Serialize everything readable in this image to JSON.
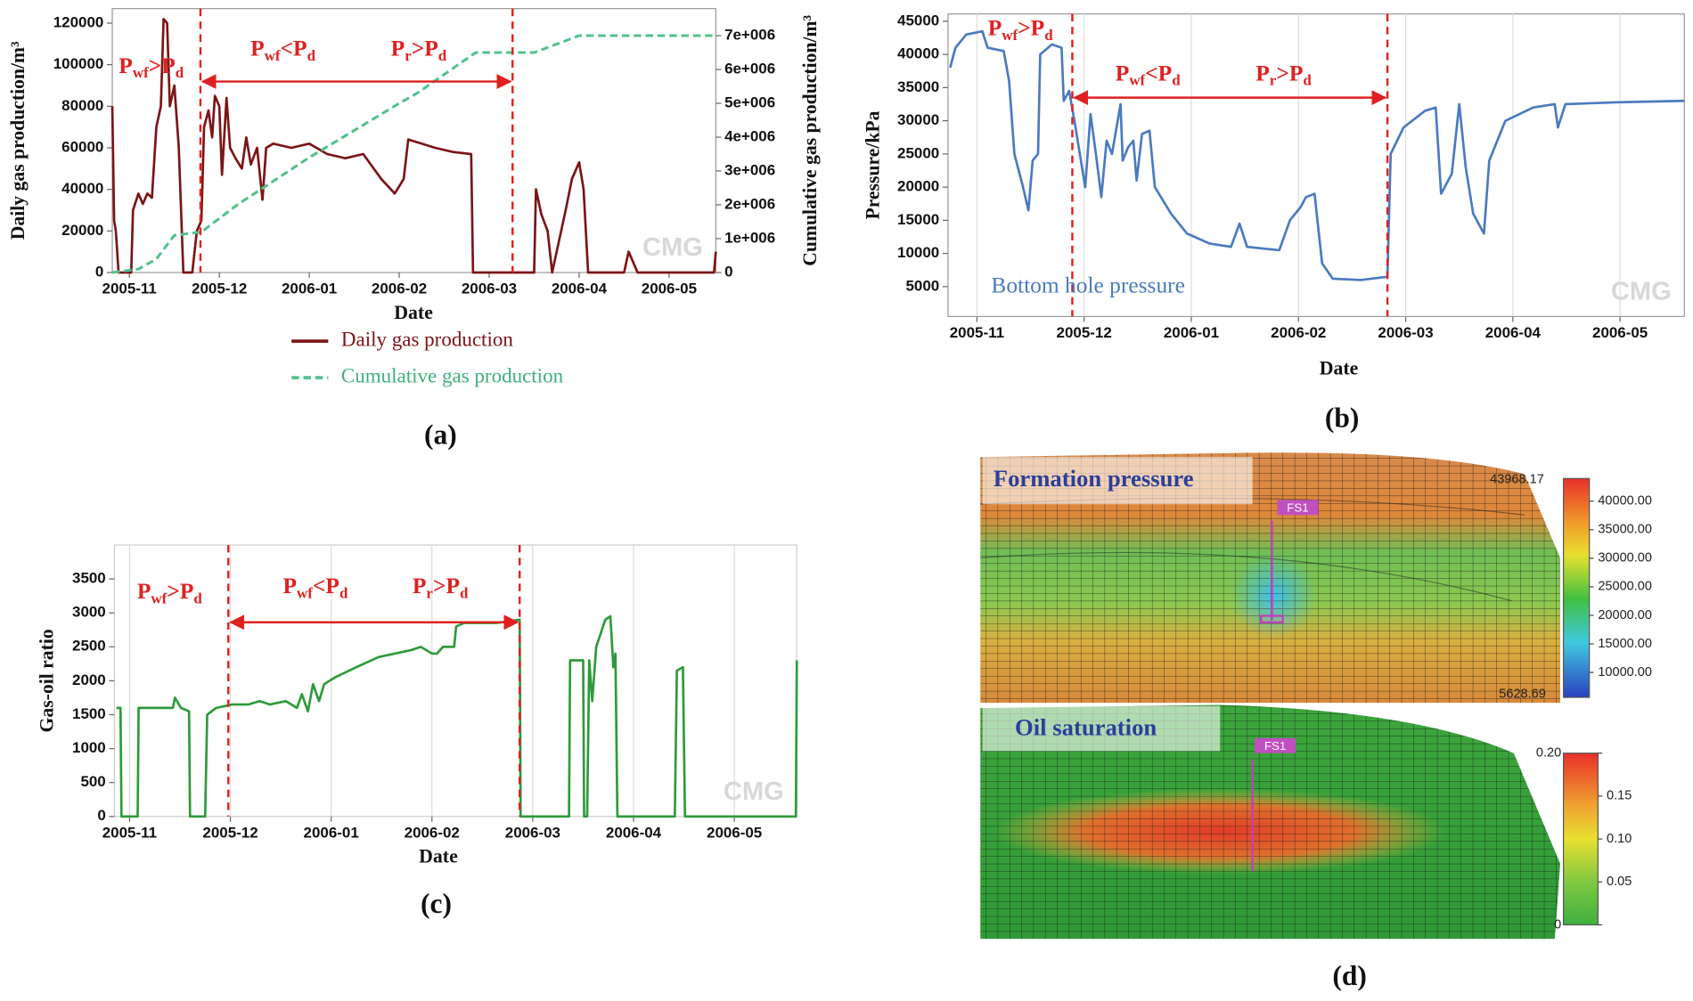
{
  "chart_data": [
    {
      "type": "line",
      "panel_label": "(a)",
      "x_label": "Date",
      "y_label": "Daily gas production/m³",
      "y2_label": "Cumulative gas production/m³",
      "xlim": [
        -0.19,
        6.52
      ],
      "xticks": [
        {
          "value": 0,
          "label": "2005-11"
        },
        {
          "value": 1,
          "label": "2005-12"
        },
        {
          "value": 2,
          "label": "2006-01"
        },
        {
          "value": 3,
          "label": "2006-02"
        },
        {
          "value": 4,
          "label": "2006-03"
        },
        {
          "value": 5,
          "label": "2006-04"
        },
        {
          "value": 6,
          "label": "2006-05"
        }
      ],
      "ylim": [
        0,
        127000
      ],
      "yticks": [
        0,
        20000,
        40000,
        60000,
        80000,
        100000,
        120000
      ],
      "y2lim": [
        0,
        7800000
      ],
      "y2ticks": [
        0,
        {
          "value": 1000000,
          "label": "1e+006"
        },
        {
          "value": 2000000,
          "label": "2e+006"
        },
        {
          "value": 3000000,
          "label": "3e+006"
        },
        {
          "value": 4000000,
          "label": "4e+006"
        },
        {
          "value": 5000000,
          "label": "5e+006"
        },
        {
          "value": 6000000,
          "label": "6e+006"
        },
        {
          "value": 7000000,
          "label": "7e+006"
        }
      ],
      "grid": false,
      "legend": "below",
      "watermark": "CMG",
      "vlines": [
        0.79,
        4.26
      ],
      "annotations": [
        {
          "parts": [
            "P",
            "wf",
            ">P",
            "d"
          ]
        },
        {
          "parts": [
            "P",
            "wf",
            "<P",
            "d"
          ]
        },
        {
          "parts": [
            "P",
            "r",
            ">P",
            "d"
          ]
        }
      ],
      "series": [
        {
          "name": "Daily gas production",
          "color": "#7b1416",
          "dashed": false,
          "x": [
            -0.19,
            -0.17,
            -0.15,
            -0.12,
            0.02,
            0.04,
            0.1,
            0.15,
            0.2,
            0.25,
            0.3,
            0.35,
            0.38,
            0.42,
            0.45,
            0.5,
            0.55,
            0.6,
            0.7,
            0.75,
            0.8,
            0.83,
            0.88,
            0.92,
            0.95,
            1.0,
            1.03,
            1.08,
            1.12,
            1.18,
            1.25,
            1.3,
            1.35,
            1.42,
            1.48,
            1.52,
            1.6,
            1.8,
            2.0,
            2.2,
            2.4,
            2.6,
            2.8,
            2.95,
            3.05,
            3.1,
            3.4,
            3.6,
            3.8,
            3.82,
            4.5,
            4.52,
            4.58,
            4.65,
            4.7,
            4.85,
            4.92,
            5.0,
            5.05,
            5.1,
            5.5,
            5.55,
            5.6,
            5.65,
            6.5,
            6.52
          ],
          "values": [
            80000,
            25000,
            20000,
            0,
            0,
            30000,
            38000,
            33000,
            38000,
            36000,
            70000,
            80000,
            122000,
            120000,
            80000,
            90000,
            60000,
            0,
            0,
            20000,
            25000,
            70000,
            78000,
            65000,
            85000,
            80000,
            47000,
            84000,
            60000,
            55000,
            50000,
            65000,
            52000,
            60000,
            35000,
            60000,
            62000,
            60000,
            62000,
            57000,
            55000,
            57000,
            45000,
            38000,
            45000,
            64000,
            60000,
            58000,
            57000,
            0,
            0,
            40000,
            28000,
            20000,
            0,
            30000,
            45000,
            53000,
            40000,
            0,
            0,
            10000,
            5000,
            0,
            0,
            10000
          ]
        },
        {
          "name": "Cumulative gas production",
          "color": "#4fc28a",
          "dashed": true,
          "axis": "y2",
          "x": [
            -0.19,
            0.1,
            0.3,
            0.5,
            0.8,
            1.2,
            2.0,
            3.0,
            3.2,
            3.85,
            4.5,
            5.0,
            6.52
          ],
          "values": [
            0,
            100000,
            400000,
            1100000,
            1200000,
            2000000,
            3400000,
            5000000,
            5300000,
            6500000,
            6500000,
            7000000,
            7000000
          ]
        }
      ]
    },
    {
      "type": "line",
      "panel_label": "(b)",
      "x_label": "Date",
      "y_label": "Pressure/kPa",
      "xlim": [
        -0.27,
        6.6
      ],
      "xticks": [
        {
          "value": 0,
          "label": "2005-11"
        },
        {
          "value": 1,
          "label": "2005-12"
        },
        {
          "value": 2,
          "label": "2006-01"
        },
        {
          "value": 3,
          "label": "2006-02"
        },
        {
          "value": 4,
          "label": "2006-03"
        },
        {
          "value": 5,
          "label": "2006-04"
        },
        {
          "value": 6,
          "label": "2006-05"
        }
      ],
      "ylim": [
        500,
        46100
      ],
      "yticks": [
        5000,
        10000,
        15000,
        20000,
        25000,
        30000,
        35000,
        40000,
        45000
      ],
      "grid": "x",
      "legend": "bottom-left",
      "watermark": "CMG",
      "vlines": [
        0.89,
        3.83
      ],
      "annotations": [
        {
          "parts": [
            "P",
            "wf",
            ">P",
            "d"
          ]
        },
        {
          "parts": [
            "P",
            "wf",
            "<P",
            "d"
          ]
        },
        {
          "parts": [
            "P",
            "r",
            ">P",
            "d"
          ]
        }
      ],
      "series": [
        {
          "name": "Bottom hole pressure",
          "color": "#4a7ac0",
          "dashed": false,
          "x": [
            -0.25,
            -0.2,
            -0.1,
            0.05,
            0.1,
            0.25,
            0.3,
            0.35,
            0.43,
            0.48,
            0.52,
            0.57,
            0.59,
            0.7,
            0.79,
            0.81,
            0.86,
            0.91,
            0.96,
            1.01,
            1.06,
            1.11,
            1.16,
            1.21,
            1.26,
            1.34,
            1.36,
            1.41,
            1.46,
            1.49,
            1.54,
            1.61,
            1.66,
            1.81,
            1.96,
            2.17,
            2.37,
            2.45,
            2.52,
            2.82,
            2.92,
            3.02,
            3.07,
            3.15,
            3.22,
            3.32,
            3.58,
            3.83,
            3.86,
            3.98,
            4.18,
            4.28,
            4.33,
            4.43,
            4.5,
            4.56,
            4.63,
            4.73,
            4.78,
            4.93,
            5.19,
            5.39,
            5.42,
            5.49,
            5.99,
            6.6
          ],
          "values": [
            38000,
            41000,
            43000,
            43500,
            41000,
            40500,
            36000,
            25000,
            20000,
            16500,
            24000,
            25000,
            40000,
            41500,
            41000,
            33000,
            34500,
            30000,
            25000,
            20000,
            31000,
            25000,
            18500,
            27000,
            25000,
            32500,
            24000,
            26000,
            27000,
            21000,
            28000,
            28500,
            20000,
            16000,
            13000,
            11500,
            11000,
            14500,
            11000,
            10500,
            15000,
            17000,
            18500,
            19000,
            8500,
            6200,
            6000,
            6500,
            25000,
            29000,
            31500,
            32000,
            19000,
            22000,
            32500,
            23000,
            16000,
            13000,
            24000,
            30000,
            32000,
            32500,
            29000,
            32500,
            32800,
            33000
          ]
        }
      ]
    },
    {
      "type": "line",
      "panel_label": "(c)",
      "x_label": "Date",
      "y_label": "Gas-oil ratio",
      "xlim": [
        -0.15,
        6.62
      ],
      "xticks": [
        {
          "value": 0,
          "label": "2005-11"
        },
        {
          "value": 1,
          "label": "2005-12"
        },
        {
          "value": 2,
          "label": "2006-01"
        },
        {
          "value": 3,
          "label": "2006-02"
        },
        {
          "value": 4,
          "label": "2006-03"
        },
        {
          "value": 5,
          "label": "2006-04"
        },
        {
          "value": 6,
          "label": "2006-05"
        }
      ],
      "ylim": [
        0,
        4000
      ],
      "yticks": [
        0,
        500,
        1000,
        1500,
        2000,
        2500,
        3000,
        3500
      ],
      "grid": "x",
      "watermark": "CMG",
      "vlines": [
        0.98,
        3.87
      ],
      "annotations": [
        {
          "parts": [
            "P",
            "wf",
            ">P",
            "d"
          ]
        },
        {
          "parts": [
            "P",
            "wf",
            "<P",
            "d"
          ]
        },
        {
          "parts": [
            "P",
            "r",
            ">P",
            "d"
          ]
        }
      ],
      "series": [
        {
          "color": "#2e9a3a",
          "dashed": false,
          "x": [
            -0.13,
            -0.09,
            -0.08,
            0.08,
            0.09,
            0.43,
            0.45,
            0.51,
            0.59,
            0.6,
            0.75,
            0.77,
            0.86,
            1.02,
            1.18,
            1.29,
            1.39,
            1.55,
            1.66,
            1.71,
            1.77,
            1.82,
            1.88,
            1.93,
            2.04,
            2.25,
            2.47,
            2.79,
            2.89,
            3.0,
            3.05,
            3.11,
            3.22,
            3.24,
            3.32,
            3.64,
            3.87,
            3.88,
            4.36,
            4.37,
            4.5,
            4.51,
            4.54,
            4.56,
            4.59,
            4.63,
            4.72,
            4.77,
            4.8,
            4.82,
            4.84,
            5.41,
            5.43,
            5.49,
            5.51,
            6.61,
            6.62
          ],
          "values": [
            1600,
            1600,
            0,
            0,
            1600,
            1600,
            1750,
            1600,
            1550,
            0,
            0,
            1500,
            1600,
            1650,
            1650,
            1700,
            1650,
            1700,
            1600,
            1800,
            1550,
            1950,
            1700,
            1950,
            2050,
            2200,
            2350,
            2450,
            2500,
            2400,
            2400,
            2500,
            2500,
            2800,
            2850,
            2850,
            2900,
            0,
            0,
            2300,
            2300,
            0,
            0,
            2300,
            1700,
            2500,
            2900,
            2950,
            2200,
            2400,
            0,
            0,
            2150,
            2200,
            0,
            0,
            2300
          ]
        }
      ]
    }
  ],
  "panel_d": {
    "panel_label": "(d)",
    "pressure": {
      "title": "Formation pressure",
      "well": "FS1",
      "range": [
        5628.69,
        43968.17
      ],
      "ticks": [
        {
          "value": 10000,
          "label": "10000.00"
        },
        {
          "value": 15000,
          "label": "15000.00"
        },
        {
          "value": 20000,
          "label": "20000.00"
        },
        {
          "value": 25000,
          "label": "25000.00"
        },
        {
          "value": 30000,
          "label": "30000.00"
        },
        {
          "value": 35000,
          "label": "35000.00"
        },
        {
          "value": 40000,
          "label": "40000.00"
        }
      ]
    },
    "saturation": {
      "title": "Oil saturation",
      "well": "FS1",
      "range": [
        0,
        0.2
      ],
      "ticks": [
        0,
        0.05,
        {
          "value": 0.1,
          "label": "0.10"
        },
        0.15,
        {
          "value": 0.2,
          "label": "0.20"
        }
      ]
    }
  }
}
